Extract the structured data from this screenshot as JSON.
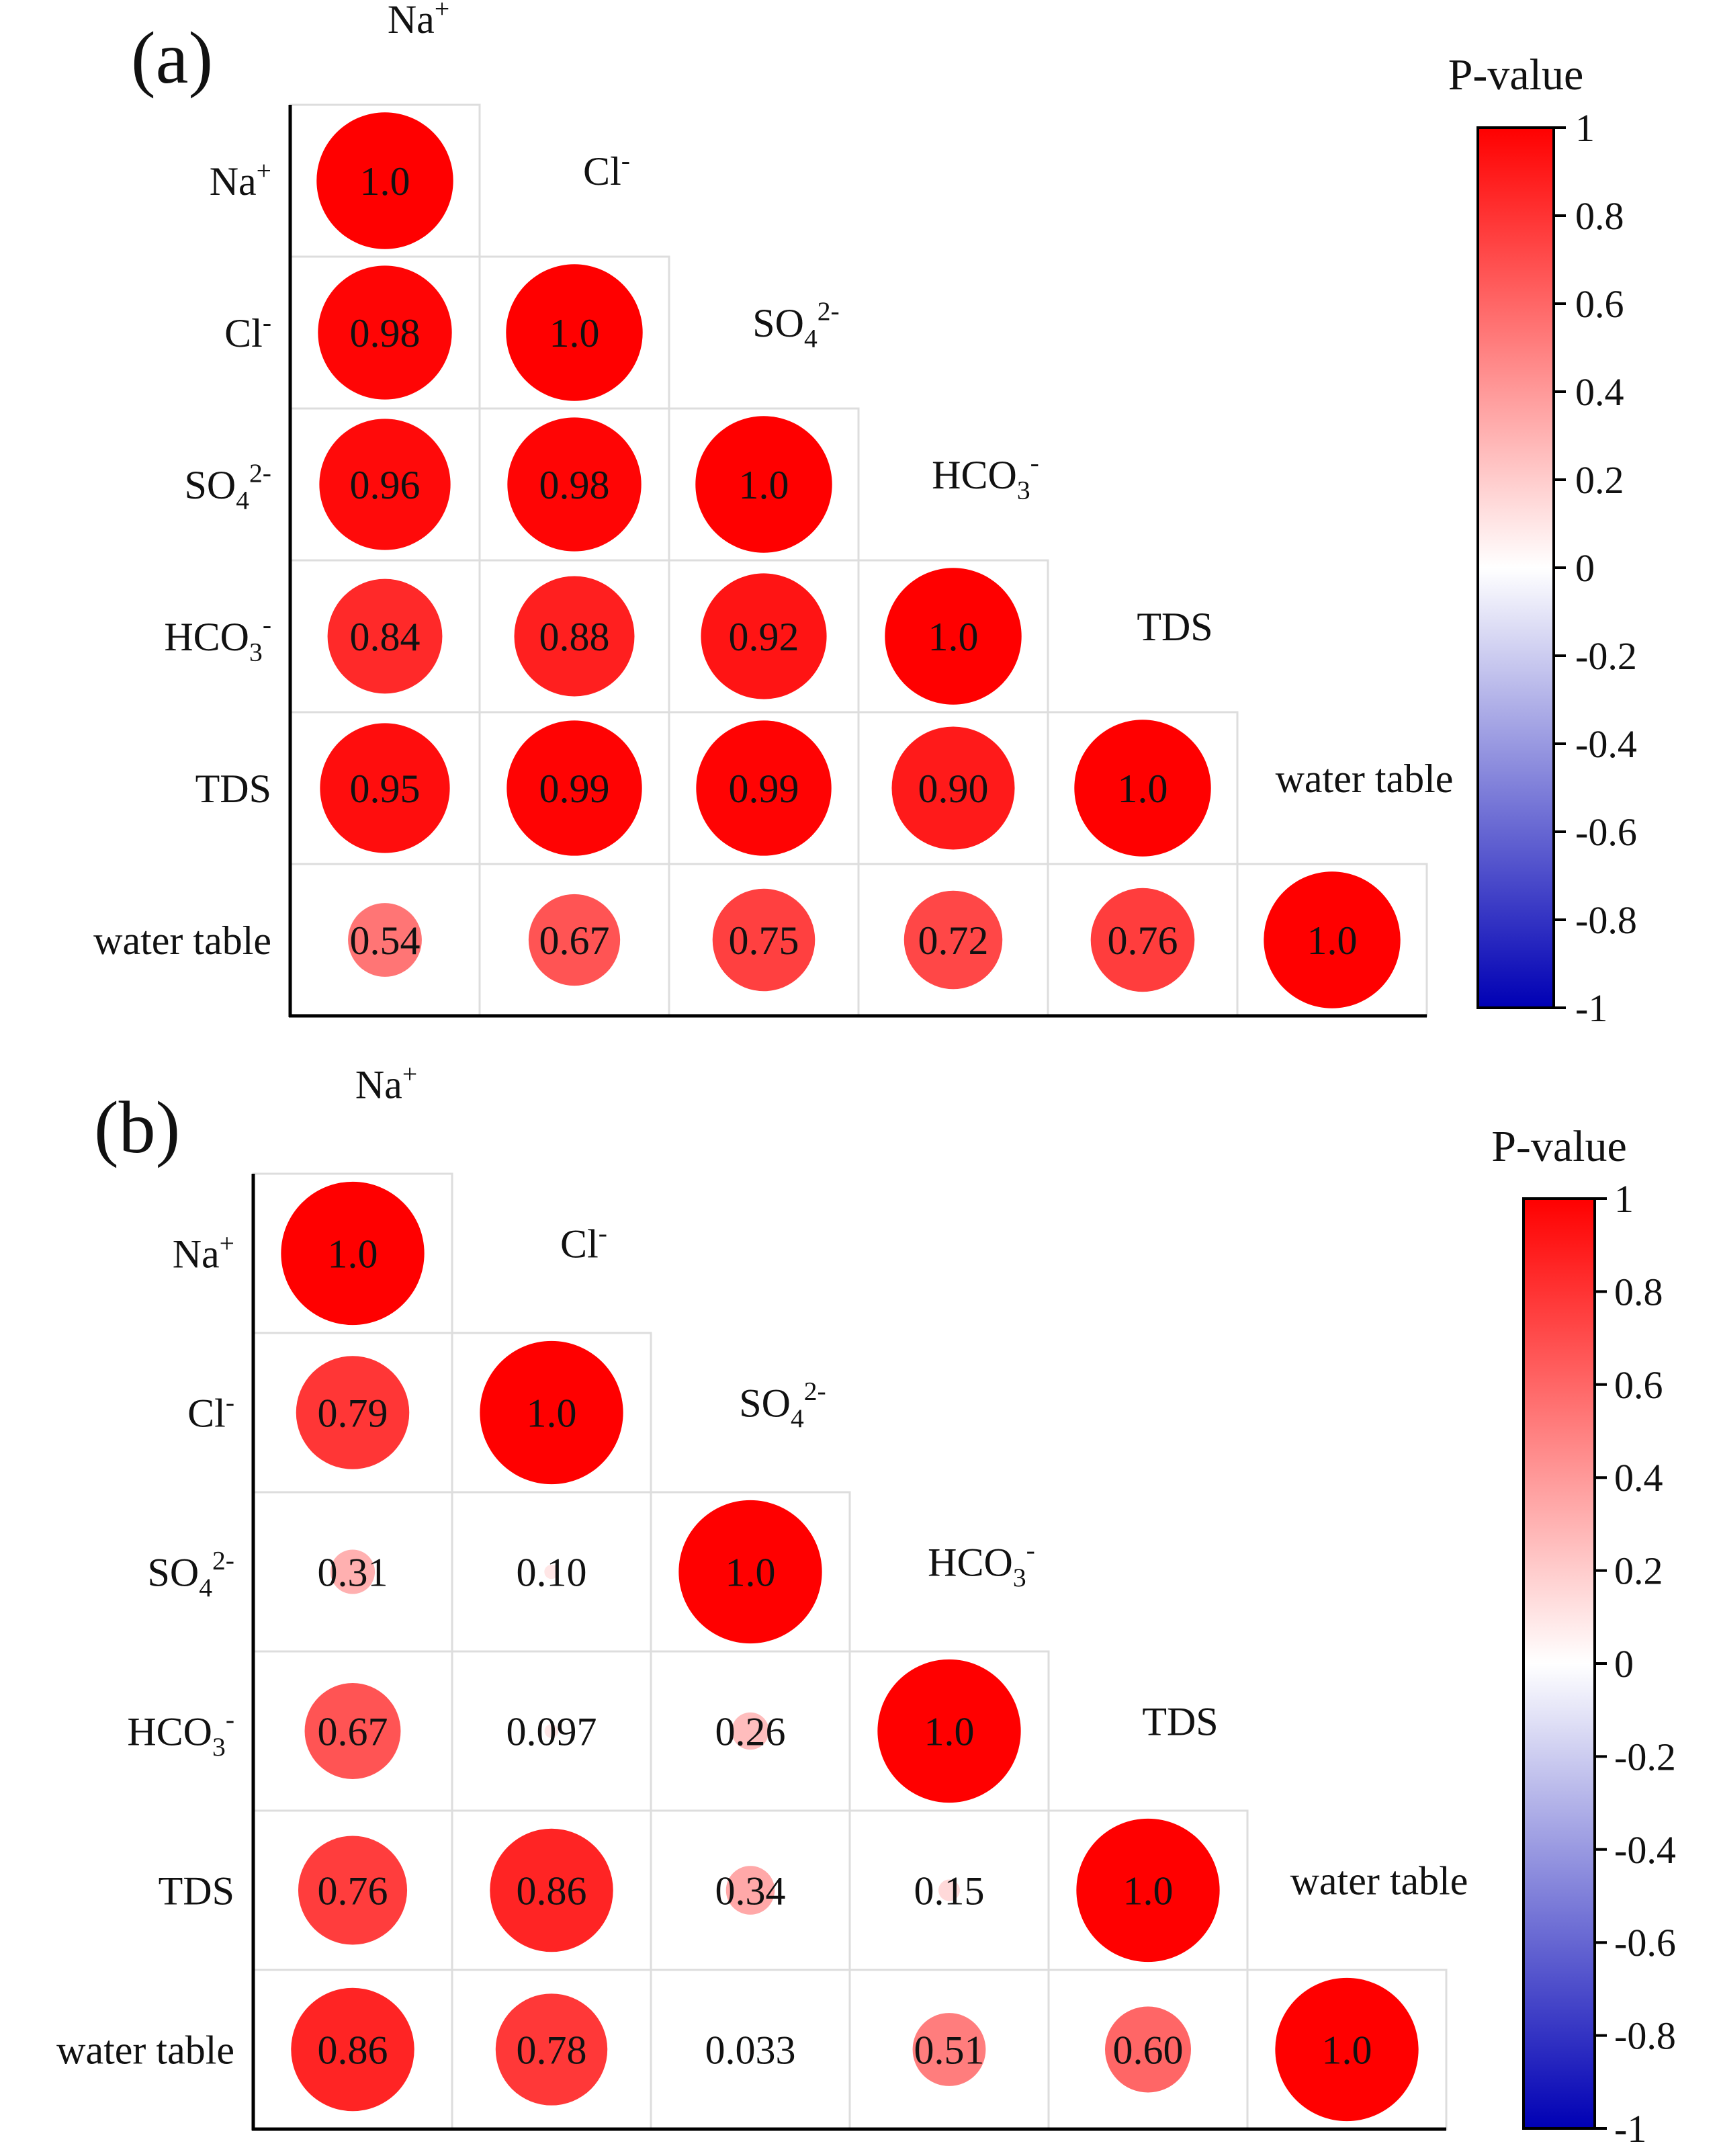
{
  "chart_data": [
    {
      "panel_label": "(a)",
      "type": "heatmap",
      "variables": [
        "Na+",
        "Cl-",
        "SO42-",
        "HCO3-",
        "TDS",
        "water table"
      ],
      "values": [
        [
          1.0
        ],
        [
          0.98,
          1.0
        ],
        [
          0.96,
          0.98,
          1.0
        ],
        [
          0.84,
          0.88,
          0.92,
          1.0
        ],
        [
          0.95,
          0.99,
          0.99,
          0.9,
          1.0
        ],
        [
          0.54,
          0.67,
          0.75,
          0.72,
          0.76,
          1.0
        ]
      ],
      "value_labels": [
        [
          "1.0"
        ],
        [
          "0.98",
          "1.0"
        ],
        [
          "0.96",
          "0.98",
          "1.0"
        ],
        [
          "0.84",
          "0.88",
          "0.92",
          "1.0"
        ],
        [
          "0.95",
          "0.99",
          "0.99",
          "0.90",
          "1.0"
        ],
        [
          "0.54",
          "0.67",
          "0.75",
          "0.72",
          "0.76",
          "1.0"
        ]
      ],
      "colorbar": {
        "title": "P-value",
        "range": [
          -1,
          1
        ],
        "ticks": [
          "1",
          "0.8",
          "0.6",
          "0.4",
          "0.2",
          "0",
          "-0.2",
          "-0.4",
          "-0.6",
          "-0.8",
          "-1"
        ],
        "colors": {
          "low": "#0000b4",
          "mid": "#ffffff",
          "high": "#ff0000"
        }
      }
    },
    {
      "panel_label": "(b)",
      "type": "heatmap",
      "variables": [
        "Na+",
        "Cl-",
        "SO42-",
        "HCO3-",
        "TDS",
        "water table"
      ],
      "values": [
        [
          1.0
        ],
        [
          0.79,
          1.0
        ],
        [
          0.31,
          0.1,
          1.0
        ],
        [
          0.67,
          0.097,
          0.26,
          1.0
        ],
        [
          0.76,
          0.86,
          0.34,
          0.15,
          1.0
        ],
        [
          0.86,
          0.78,
          0.033,
          0.51,
          0.6,
          1.0
        ]
      ],
      "value_labels": [
        [
          "1.0"
        ],
        [
          "0.79",
          "1.0"
        ],
        [
          "0.31",
          "0.10",
          "1.0"
        ],
        [
          "0.67",
          "0.097",
          "0.26",
          "1.0"
        ],
        [
          "0.76",
          "0.86",
          "0.34",
          "0.15",
          "1.0"
        ],
        [
          "0.86",
          "0.78",
          "0.033",
          "0.51",
          "0.60",
          "1.0"
        ]
      ],
      "colorbar": {
        "title": "P-value",
        "range": [
          -1,
          1
        ],
        "ticks": [
          "1",
          "0.8",
          "0.6",
          "0.4",
          "0.2",
          "0",
          "-0.2",
          "-0.4",
          "-0.6",
          "-0.8",
          "-1"
        ],
        "colors": {
          "low": "#0000b4",
          "mid": "#ffffff",
          "high": "#ff0000"
        }
      }
    }
  ]
}
